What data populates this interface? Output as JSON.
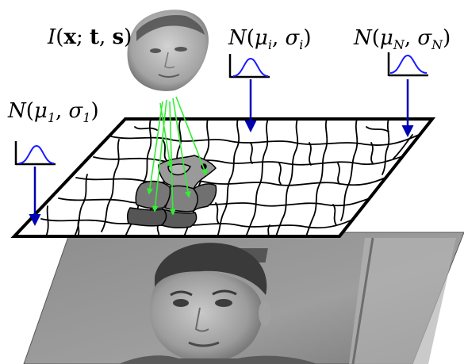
{
  "labels": {
    "template": "I(x; t, s)",
    "dist_1": "N(μ1, σ1)",
    "dist_i": "N(μi, σi)",
    "dist_N": "N(μN, σN)"
  },
  "colors": {
    "outline": "#000000",
    "gaussian": "#1a1aff",
    "arrow_blue": "#0000b4",
    "arrow_green": "#33ee33",
    "region_light": "#9a9a9a",
    "region_dark": "#555555",
    "region_mid": "#777777"
  },
  "icons": {
    "template": "face-template-image",
    "gaussian": "gaussian-curve-icon",
    "photo": "face-photograph"
  }
}
